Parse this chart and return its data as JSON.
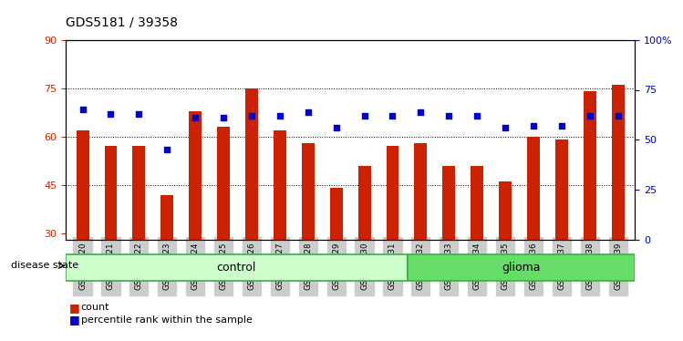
{
  "title": "GDS5181 / 39358",
  "samples": [
    "GSM769920",
    "GSM769921",
    "GSM769922",
    "GSM769923",
    "GSM769924",
    "GSM769925",
    "GSM769926",
    "GSM769927",
    "GSM769928",
    "GSM769929",
    "GSM769930",
    "GSM769931",
    "GSM769932",
    "GSM769933",
    "GSM769934",
    "GSM769935",
    "GSM769936",
    "GSM769937",
    "GSM769938",
    "GSM769939"
  ],
  "bar_values": [
    62,
    57,
    57,
    42,
    68,
    63,
    75,
    62,
    58,
    44,
    51,
    57,
    58,
    51,
    51,
    46,
    60,
    59,
    74,
    76
  ],
  "percentile_values": [
    65,
    63,
    63,
    45,
    61,
    61,
    62,
    62,
    64,
    56,
    62,
    62,
    64,
    62,
    62,
    56,
    57,
    57,
    62,
    62
  ],
  "bar_color": "#cc2200",
  "dot_color": "#0000cc",
  "control_count": 12,
  "glioma_count": 8,
  "ylim_left": [
    28,
    90
  ],
  "ylim_right": [
    0,
    100
  ],
  "yticks_left": [
    30,
    45,
    60,
    75,
    90
  ],
  "yticks_right": [
    0,
    25,
    50,
    75,
    100
  ],
  "ytick_labels_right": [
    "0",
    "25",
    "50",
    "75",
    "100%"
  ],
  "grid_values": [
    45,
    60,
    75
  ],
  "control_color": "#ccffcc",
  "glioma_color": "#66dd66",
  "label_bg_color": "#cccccc",
  "legend_count_label": "count",
  "legend_pct_label": "percentile rank within the sample",
  "disease_state_label": "disease state"
}
